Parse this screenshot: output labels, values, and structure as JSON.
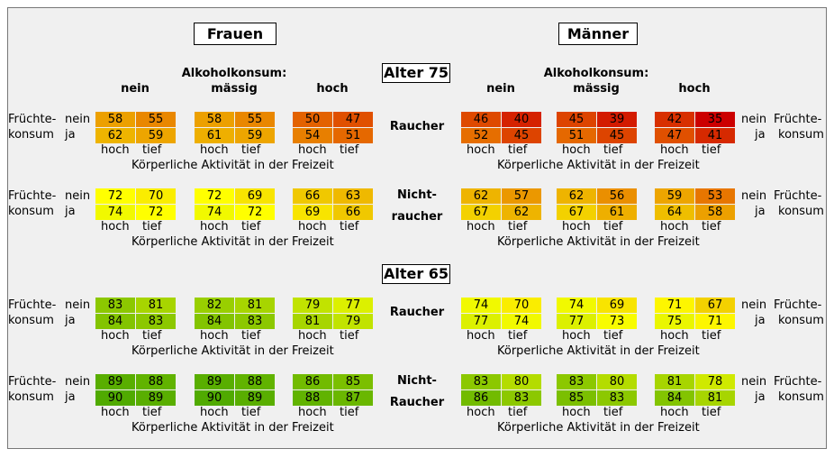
{
  "titles": {
    "women": "Frauen",
    "men": "Männer"
  },
  "headers": {
    "alcohol": "Alkoholkonsum:",
    "levels": [
      "nein",
      "mässig",
      "hoch"
    ]
  },
  "labels": {
    "fruit_1": "Früchte-",
    "fruit_2": "konsum",
    "no": "nein",
    "yes": "ja",
    "activity_high": "hoch",
    "activity_low": "tief",
    "activity_caption": "Körperliche Aktivität in der Freizeit"
  },
  "chart_data": {
    "type": "heatmap",
    "description_axes": {
      "age_groups": [
        "Alter 75",
        "Alter 65"
      ],
      "smoking": [
        "Raucher",
        "Nicht-raucher"
      ],
      "sex": [
        "Frauen",
        "Männer"
      ],
      "alcohol": [
        "nein",
        "mässig",
        "hoch"
      ],
      "fruit": [
        "nein",
        "ja"
      ],
      "activity": [
        "hoch",
        "tief"
      ]
    },
    "blocks": [
      {
        "age": "Alter 75",
        "smoking_label": [
          "Raucher"
        ],
        "women": [
          [
            [
              58,
              55
            ],
            [
              62,
              59
            ]
          ],
          [
            [
              58,
              55
            ],
            [
              61,
              59
            ]
          ],
          [
            [
              50,
              47
            ],
            [
              54,
              51
            ]
          ]
        ],
        "men": [
          [
            [
              46,
              40
            ],
            [
              52,
              45
            ]
          ],
          [
            [
              45,
              39
            ],
            [
              51,
              45
            ]
          ],
          [
            [
              42,
              35
            ],
            [
              47,
              41
            ]
          ]
        ]
      },
      {
        "age": "",
        "smoking_label": [
          "Nicht-",
          "raucher"
        ],
        "women": [
          [
            [
              72,
              70
            ],
            [
              74,
              72
            ]
          ],
          [
            [
              72,
              69
            ],
            [
              74,
              72
            ]
          ],
          [
            [
              66,
              63
            ],
            [
              69,
              66
            ]
          ]
        ],
        "men": [
          [
            [
              62,
              57
            ],
            [
              67,
              62
            ]
          ],
          [
            [
              62,
              56
            ],
            [
              67,
              61
            ]
          ],
          [
            [
              59,
              53
            ],
            [
              64,
              58
            ]
          ]
        ]
      },
      {
        "age": "Alter 65",
        "smoking_label": [
          "Raucher"
        ],
        "women": [
          [
            [
              83,
              81
            ],
            [
              84,
              83
            ]
          ],
          [
            [
              82,
              81
            ],
            [
              84,
              83
            ]
          ],
          [
            [
              79,
              77
            ],
            [
              81,
              79
            ]
          ]
        ],
        "men": [
          [
            [
              74,
              70
            ],
            [
              77,
              74
            ]
          ],
          [
            [
              74,
              69
            ],
            [
              77,
              73
            ]
          ],
          [
            [
              71,
              67
            ],
            [
              75,
              71
            ]
          ]
        ]
      },
      {
        "age": "",
        "smoking_label": [
          "Nicht-",
          "Raucher"
        ],
        "women": [
          [
            [
              89,
              88
            ],
            [
              90,
              89
            ]
          ],
          [
            [
              89,
              88
            ],
            [
              90,
              89
            ]
          ],
          [
            [
              86,
              85
            ],
            [
              88,
              87
            ]
          ]
        ],
        "men": [
          [
            [
              83,
              80
            ],
            [
              86,
              83
            ]
          ],
          [
            [
              83,
              80
            ],
            [
              85,
              83
            ]
          ],
          [
            [
              81,
              78
            ],
            [
              84,
              81
            ]
          ]
        ]
      }
    ]
  }
}
